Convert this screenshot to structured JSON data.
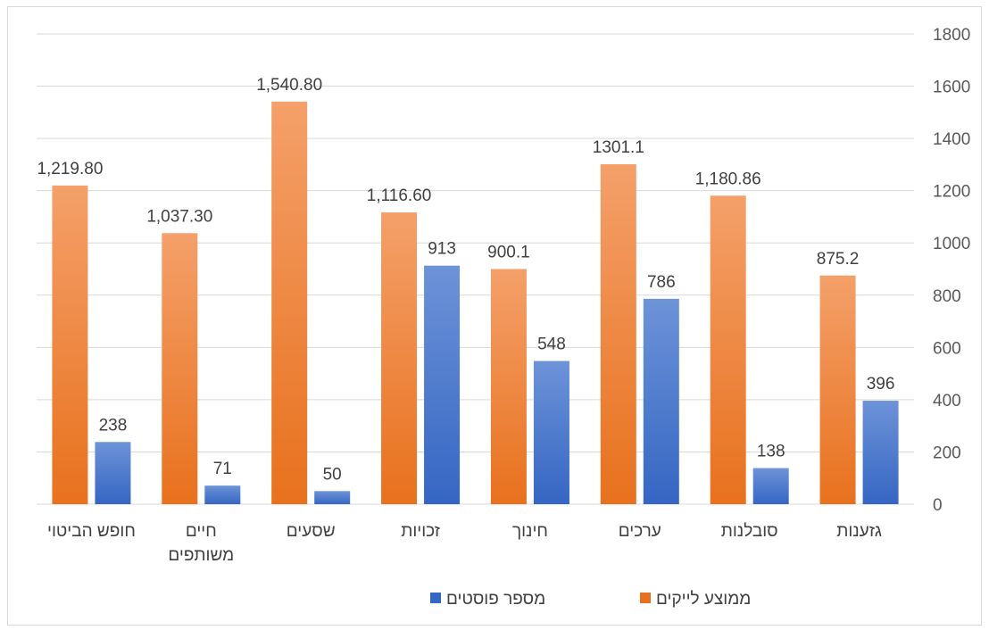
{
  "chart_data": {
    "type": "bar",
    "categories": [
      [
        "חופש הביטוי"
      ],
      [
        "חיים",
        "משותפים"
      ],
      [
        "שסעים"
      ],
      [
        "זכויות"
      ],
      [
        "חינוך"
      ],
      [
        "ערכים"
      ],
      [
        "סובלנות"
      ],
      [
        "גזענות"
      ]
    ],
    "series": [
      {
        "name": "ממוצע לייקים",
        "values": [
          1219.8,
          1037.3,
          1540.8,
          1116.6,
          900.1,
          1301.1,
          1180.86,
          875.2
        ],
        "labels": [
          "1,219.80",
          "1,037.30",
          "1,540.80",
          "1,116.60",
          "900.1",
          "1301.1",
          "1,180.86",
          "875.2"
        ],
        "color_top": "#f4a06a",
        "color_bottom": "#e8711d"
      },
      {
        "name": "מספר פוסטים",
        "values": [
          238,
          71,
          50,
          913,
          548,
          786,
          138,
          396
        ],
        "labels": [
          "238",
          "71",
          "50",
          "913",
          "548",
          "786",
          "138",
          "396"
        ],
        "color_top": "#6d93d8",
        "color_bottom": "#3566c3"
      }
    ],
    "y_ticks": [
      "0",
      "200",
      "400",
      "600",
      "800",
      "1000",
      "1200",
      "1400",
      "1600",
      "1800"
    ],
    "ylim": [
      0,
      1800
    ],
    "y_axis_side": "right",
    "grid": true,
    "legend_position": "bottom"
  }
}
